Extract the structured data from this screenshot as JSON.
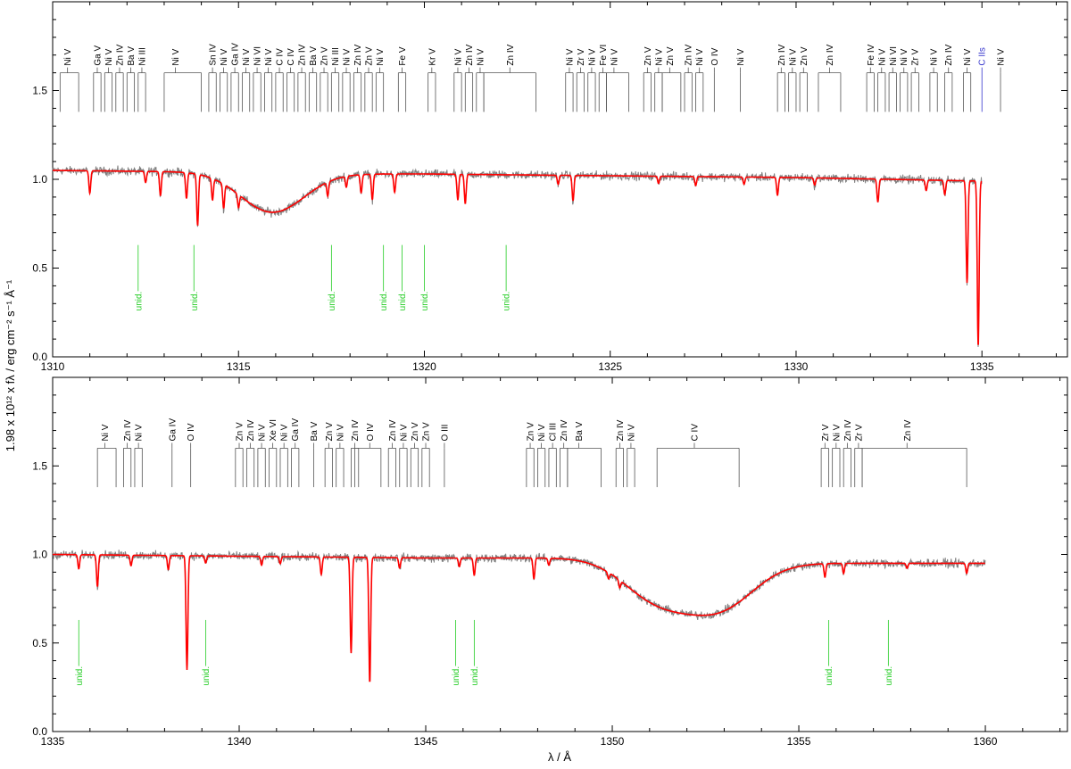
{
  "figure": {
    "ylabel": "1.98 x 10¹² x fλ / erg cm⁻² s⁻¹ Å⁻¹",
    "xlabel": "λ / Å"
  },
  "colors": {
    "observed": "#808080",
    "model": "#ff0000",
    "unid": "#22cc22",
    "ids": "#000000",
    "ism": "#3333cc"
  },
  "chart_data": [
    {
      "type": "line",
      "name": "panel-top",
      "xlim": [
        1310,
        1337.3
      ],
      "ylim": [
        0.0,
        2.0
      ],
      "xticks": [
        1310,
        1315,
        1320,
        1325,
        1330,
        1335
      ],
      "yticks": [
        0.0,
        0.5,
        1.0,
        1.5
      ],
      "continuum": [
        [
          1310,
          1.05
        ],
        [
          1314.8,
          1.04
        ],
        [
          1316.8,
          1.03
        ],
        [
          1320,
          1.03
        ],
        [
          1325,
          1.02
        ],
        [
          1330,
          1.01
        ],
        [
          1335,
          0.99
        ]
      ],
      "broad_features": [
        {
          "center": 1315.9,
          "depth": 0.22,
          "width": 1.2
        }
      ],
      "absorption_lines": [
        {
          "wl": 1311.0,
          "depth": 0.12
        },
        {
          "wl": 1312.5,
          "depth": 0.06
        },
        {
          "wl": 1312.9,
          "depth": 0.13
        },
        {
          "wl": 1313.6,
          "depth": 0.14
        },
        {
          "wl": 1313.9,
          "depth": 0.28
        },
        {
          "wl": 1314.3,
          "depth": 0.12
        },
        {
          "wl": 1314.6,
          "depth": 0.14
        },
        {
          "wl": 1315.0,
          "depth": 0.08
        },
        {
          "wl": 1317.4,
          "depth": 0.08
        },
        {
          "wl": 1317.9,
          "depth": 0.06
        },
        {
          "wl": 1318.3,
          "depth": 0.1
        },
        {
          "wl": 1318.6,
          "depth": 0.14
        },
        {
          "wl": 1319.2,
          "depth": 0.1
        },
        {
          "wl": 1320.9,
          "depth": 0.14
        },
        {
          "wl": 1321.1,
          "depth": 0.16
        },
        {
          "wl": 1323.6,
          "depth": 0.05
        },
        {
          "wl": 1324.0,
          "depth": 0.14
        },
        {
          "wl": 1326.3,
          "depth": 0.04
        },
        {
          "wl": 1327.3,
          "depth": 0.05
        },
        {
          "wl": 1328.6,
          "depth": 0.04
        },
        {
          "wl": 1329.5,
          "depth": 0.1
        },
        {
          "wl": 1330.5,
          "depth": 0.04
        },
        {
          "wl": 1332.2,
          "depth": 0.13
        },
        {
          "wl": 1333.5,
          "depth": 0.06
        },
        {
          "wl": 1334.0,
          "depth": 0.08
        },
        {
          "wl": 1334.6,
          "depth": 0.58
        },
        {
          "wl": 1334.9,
          "depth": 0.94
        }
      ],
      "line_ids": [
        {
          "label": "Ni V",
          "x": 1310.4,
          "bar": [
            1310.2,
            1310.7
          ]
        },
        {
          "label": "Ga V",
          "x": 1311.2,
          "bar": [
            1311.1,
            1311.3
          ]
        },
        {
          "label": "Ni V",
          "x": 1311.5,
          "bar": [
            1311.4,
            1311.6
          ]
        },
        {
          "label": "Zn IV",
          "x": 1311.8,
          "bar": [
            1311.7,
            1311.9
          ]
        },
        {
          "label": "Ba V",
          "x": 1312.1,
          "bar": [
            1312.0,
            1312.2
          ]
        },
        {
          "label": "Ni III",
          "x": 1312.4,
          "bar": [
            1312.3,
            1312.5
          ]
        },
        {
          "label": "Ni V",
          "x": 1313.3,
          "bar": [
            1313.0,
            1314.0
          ]
        },
        {
          "label": "Sn IV",
          "x": 1314.3,
          "bar": [
            1314.2,
            1314.4
          ]
        },
        {
          "label": "Ni V",
          "x": 1314.6,
          "bar": [
            1314.5,
            1314.7
          ]
        },
        {
          "label": "Ga IV",
          "x": 1314.9,
          "bar": [
            1314.8,
            1315.0
          ]
        },
        {
          "label": "Ni V",
          "x": 1315.2,
          "bar": [
            1315.1,
            1315.3
          ]
        },
        {
          "label": "Ni VI",
          "x": 1315.5,
          "bar": [
            1315.4,
            1315.6
          ]
        },
        {
          "label": "Ni V",
          "x": 1315.8,
          "bar": [
            1315.7,
            1315.9
          ]
        },
        {
          "label": "C IV",
          "x": 1316.1,
          "bar": [
            1316.0,
            1316.2
          ]
        },
        {
          "label": "C IV",
          "x": 1316.4,
          "bar": [
            1316.3,
            1316.5
          ]
        },
        {
          "label": "Zn IV",
          "x": 1316.7,
          "bar": [
            1316.6,
            1316.8
          ]
        },
        {
          "label": "Ba V",
          "x": 1317.0,
          "bar": [
            1316.9,
            1317.1
          ]
        },
        {
          "label": "Zn V",
          "x": 1317.3,
          "bar": [
            1317.2,
            1317.4
          ]
        },
        {
          "label": "Ni III",
          "x": 1317.6,
          "bar": [
            1317.5,
            1317.7
          ]
        },
        {
          "label": "Ni V",
          "x": 1317.9,
          "bar": [
            1317.8,
            1318.0
          ]
        },
        {
          "label": "Zn IV",
          "x": 1318.2,
          "bar": [
            1318.1,
            1318.3
          ]
        },
        {
          "label": "Zn V",
          "x": 1318.5,
          "bar": [
            1318.4,
            1318.6
          ]
        },
        {
          "label": "Ni V",
          "x": 1318.8,
          "bar": [
            1318.7,
            1318.9
          ]
        },
        {
          "label": "Fe V",
          "x": 1319.4,
          "bar": [
            1319.3,
            1319.5
          ]
        },
        {
          "label": "Kr V",
          "x": 1320.2,
          "bar": [
            1320.1,
            1320.3
          ]
        },
        {
          "label": "Ni V",
          "x": 1320.9,
          "bar": [
            1320.8,
            1321.0
          ]
        },
        {
          "label": "Zn IV",
          "x": 1321.2,
          "bar": [
            1321.1,
            1321.3
          ]
        },
        {
          "label": "Ni V",
          "x": 1321.5,
          "bar": [
            1321.4,
            1321.6
          ]
        },
        {
          "label": "Zn IV",
          "x": 1322.3,
          "bar": [
            1321.6,
            1323.0
          ]
        },
        {
          "label": "Ni V",
          "x": 1323.9,
          "bar": [
            1323.8,
            1324.0
          ]
        },
        {
          "label": "Zr V",
          "x": 1324.2,
          "bar": [
            1324.1,
            1324.3
          ]
        },
        {
          "label": "Ni V",
          "x": 1324.5,
          "bar": [
            1324.4,
            1324.6
          ]
        },
        {
          "label": "Fe VI",
          "x": 1324.8,
          "bar": [
            1324.7,
            1324.9
          ]
        },
        {
          "label": "Ni V",
          "x": 1325.1,
          "bar": [
            1324.9,
            1325.5
          ]
        },
        {
          "label": "Zn V",
          "x": 1326.0,
          "bar": [
            1325.9,
            1326.1
          ]
        },
        {
          "label": "Ni V",
          "x": 1326.3,
          "bar": [
            1326.2,
            1326.4
          ]
        },
        {
          "label": "Zn V",
          "x": 1326.6,
          "bar": [
            1326.4,
            1326.9
          ]
        },
        {
          "label": "Zn IV",
          "x": 1327.1,
          "bar": [
            1327.0,
            1327.2
          ]
        },
        {
          "label": "Ni V",
          "x": 1327.4,
          "bar": [
            1327.3,
            1327.5
          ]
        },
        {
          "label": "O IV",
          "x": 1327.8,
          "bar": [
            1327.8,
            1327.8
          ]
        },
        {
          "label": "Ni V",
          "x": 1328.5,
          "bar": [
            1328.5,
            1328.5
          ]
        },
        {
          "label": "Zn IV",
          "x": 1329.6,
          "bar": [
            1329.5,
            1329.7
          ]
        },
        {
          "label": "Ni V",
          "x": 1329.9,
          "bar": [
            1329.8,
            1330.0
          ]
        },
        {
          "label": "Zn V",
          "x": 1330.2,
          "bar": [
            1330.1,
            1330.3
          ]
        },
        {
          "label": "Zn IV",
          "x": 1330.9,
          "bar": [
            1330.6,
            1331.2
          ]
        },
        {
          "label": "Fe IV",
          "x": 1332.0,
          "bar": [
            1331.9,
            1332.1
          ]
        },
        {
          "label": "Ni V",
          "x": 1332.3,
          "bar": [
            1332.2,
            1332.4
          ]
        },
        {
          "label": "Ni VI",
          "x": 1332.6,
          "bar": [
            1332.5,
            1332.7
          ]
        },
        {
          "label": "Ni V",
          "x": 1332.9,
          "bar": [
            1332.8,
            1333.0
          ]
        },
        {
          "label": "Zr V",
          "x": 1333.2,
          "bar": [
            1333.1,
            1333.3
          ]
        },
        {
          "label": "Ni V",
          "x": 1333.7,
          "bar": [
            1333.6,
            1333.8
          ]
        },
        {
          "label": "Zn IV",
          "x": 1334.1,
          "bar": [
            1334.0,
            1334.2
          ]
        },
        {
          "label": "Ni V",
          "x": 1334.6,
          "bar": [
            1334.5,
            1334.7
          ]
        },
        {
          "label": "Ni V",
          "x": 1335.5,
          "bar": [
            1335.5,
            1335.5
          ]
        }
      ],
      "ism_ids": [
        {
          "label": "C IIs",
          "x": 1335.0
        }
      ],
      "unid": [
        1312.3,
        1313.8,
        1317.5,
        1318.9,
        1319.4,
        1320.0,
        1322.2
      ]
    },
    {
      "type": "line",
      "name": "panel-bottom",
      "xlim": [
        1335,
        1362.2
      ],
      "ylim": [
        0.0,
        2.0
      ],
      "xticks": [
        1335,
        1340,
        1345,
        1350,
        1355,
        1360
      ],
      "yticks": [
        0.0,
        0.5,
        1.0,
        1.5
      ],
      "continuum": [
        [
          1335,
          1.0
        ],
        [
          1340,
          0.99
        ],
        [
          1345,
          0.98
        ],
        [
          1350,
          0.98
        ],
        [
          1355,
          0.95
        ],
        [
          1360,
          0.95
        ]
      ],
      "broad_features": [
        {
          "center": 1351.2,
          "depth": 0.22,
          "width": 1.3
        },
        {
          "center": 1352.9,
          "depth": 0.25,
          "width": 1.3
        }
      ],
      "absorption_lines": [
        {
          "wl": 1335.7,
          "depth": 0.08
        },
        {
          "wl": 1336.2,
          "depth": 0.18
        },
        {
          "wl": 1337.1,
          "depth": 0.06
        },
        {
          "wl": 1338.1,
          "depth": 0.08
        },
        {
          "wl": 1338.6,
          "depth": 0.65
        },
        {
          "wl": 1339.1,
          "depth": 0.04
        },
        {
          "wl": 1340.6,
          "depth": 0.05
        },
        {
          "wl": 1341.1,
          "depth": 0.04
        },
        {
          "wl": 1342.2,
          "depth": 0.1
        },
        {
          "wl": 1343.0,
          "depth": 0.55
        },
        {
          "wl": 1343.5,
          "depth": 0.72
        },
        {
          "wl": 1344.3,
          "depth": 0.06
        },
        {
          "wl": 1345.9,
          "depth": 0.05
        },
        {
          "wl": 1346.3,
          "depth": 0.1
        },
        {
          "wl": 1347.9,
          "depth": 0.12
        },
        {
          "wl": 1348.3,
          "depth": 0.04
        },
        {
          "wl": 1349.9,
          "depth": 0.04
        },
        {
          "wl": 1350.2,
          "depth": 0.05
        },
        {
          "wl": 1355.7,
          "depth": 0.08
        },
        {
          "wl": 1356.2,
          "depth": 0.06
        },
        {
          "wl": 1357.9,
          "depth": 0.03
        },
        {
          "wl": 1359.5,
          "depth": 0.06
        }
      ],
      "line_ids": [
        {
          "label": "Ni V",
          "x": 1336.4,
          "bar": [
            1336.2,
            1336.7
          ]
        },
        {
          "label": "Zn IV",
          "x": 1337.0,
          "bar": [
            1336.9,
            1337.1
          ]
        },
        {
          "label": "Ni V",
          "x": 1337.3,
          "bar": [
            1337.2,
            1337.4
          ]
        },
        {
          "label": "Ga IV",
          "x": 1338.2,
          "bar": [
            1338.2,
            1338.2
          ]
        },
        {
          "label": "O IV",
          "x": 1338.7,
          "bar": [
            1338.7,
            1338.7
          ]
        },
        {
          "label": "Zn V",
          "x": 1340.0,
          "bar": [
            1339.9,
            1340.1
          ]
        },
        {
          "label": "Zn IV",
          "x": 1340.3,
          "bar": [
            1340.2,
            1340.4
          ]
        },
        {
          "label": "Ni V",
          "x": 1340.6,
          "bar": [
            1340.5,
            1340.7
          ]
        },
        {
          "label": "Xe VI",
          "x": 1340.9,
          "bar": [
            1340.8,
            1341.0
          ]
        },
        {
          "label": "Ni V",
          "x": 1341.2,
          "bar": [
            1341.1,
            1341.3
          ]
        },
        {
          "label": "Ga IV",
          "x": 1341.5,
          "bar": [
            1341.4,
            1341.6
          ]
        },
        {
          "label": "Ba V",
          "x": 1342.0,
          "bar": [
            1342.0,
            1342.0
          ]
        },
        {
          "label": "Zn V",
          "x": 1342.4,
          "bar": [
            1342.3,
            1342.5
          ]
        },
        {
          "label": "Ni V",
          "x": 1342.7,
          "bar": [
            1342.6,
            1342.8
          ]
        },
        {
          "label": "Zn IV",
          "x": 1343.1,
          "bar": [
            1343.0,
            1343.2
          ]
        },
        {
          "label": "O IV",
          "x": 1343.5,
          "bar": [
            1343.1,
            1343.8
          ]
        },
        {
          "label": "Zn IV",
          "x": 1344.1,
          "bar": [
            1344.0,
            1344.2
          ]
        },
        {
          "label": "Ni V",
          "x": 1344.4,
          "bar": [
            1344.3,
            1344.5
          ]
        },
        {
          "label": "Zn V",
          "x": 1344.7,
          "bar": [
            1344.6,
            1344.8
          ]
        },
        {
          "label": "Zn V",
          "x": 1345.0,
          "bar": [
            1344.9,
            1345.1
          ]
        },
        {
          "label": "O III",
          "x": 1345.5,
          "bar": [
            1345.5,
            1345.5
          ]
        },
        {
          "label": "Zn V",
          "x": 1347.8,
          "bar": [
            1347.7,
            1347.9
          ]
        },
        {
          "label": "Ni V",
          "x": 1348.1,
          "bar": [
            1348.0,
            1348.2
          ]
        },
        {
          "label": "Cl III",
          "x": 1348.4,
          "bar": [
            1348.3,
            1348.5
          ]
        },
        {
          "label": "Zn IV",
          "x": 1348.7,
          "bar": [
            1348.6,
            1348.8
          ]
        },
        {
          "label": "Ba V",
          "x": 1349.1,
          "bar": [
            1348.8,
            1349.7
          ]
        },
        {
          "label": "Zn IV",
          "x": 1350.2,
          "bar": [
            1350.1,
            1350.3
          ]
        },
        {
          "label": "Ni V",
          "x": 1350.5,
          "bar": [
            1350.4,
            1350.6
          ]
        },
        {
          "label": "C IV",
          "x": 1352.2,
          "bar": [
            1351.2,
            1353.4
          ]
        },
        {
          "label": "Zr V",
          "x": 1355.7,
          "bar": [
            1355.6,
            1355.8
          ]
        },
        {
          "label": "Ni V",
          "x": 1356.0,
          "bar": [
            1355.9,
            1356.1
          ]
        },
        {
          "label": "Zn IV",
          "x": 1356.3,
          "bar": [
            1356.2,
            1356.4
          ]
        },
        {
          "label": "Zr V",
          "x": 1356.6,
          "bar": [
            1356.5,
            1356.7
          ]
        },
        {
          "label": "Zn IV",
          "x": 1357.9,
          "bar": [
            1356.7,
            1359.5
          ]
        }
      ],
      "ism_ids": [],
      "unid": [
        1335.7,
        1339.1,
        1345.8,
        1346.3,
        1355.8,
        1357.4
      ]
    }
  ]
}
